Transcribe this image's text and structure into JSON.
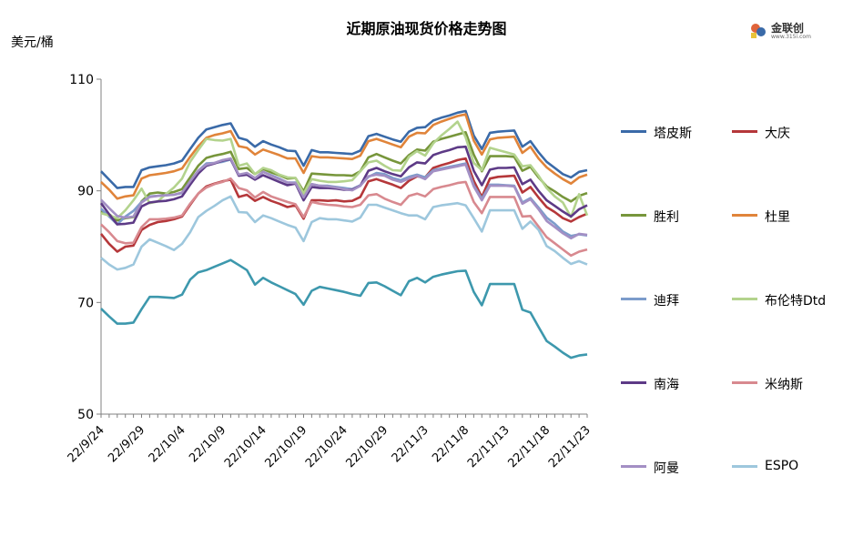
{
  "chart_data": {
    "type": "line",
    "title": "近期原油现货价格走势图",
    "ylabel": "美元/桶",
    "ylim": [
      50,
      110
    ],
    "yticks": [
      50,
      70,
      90,
      110
    ],
    "x": [
      "22/9/24",
      "22/9/25",
      "22/9/26",
      "22/9/27",
      "22/9/28",
      "22/9/29",
      "22/9/30",
      "22/10/1",
      "22/10/2",
      "22/10/3",
      "22/10/4",
      "22/10/5",
      "22/10/6",
      "22/10/7",
      "22/10/8",
      "22/10/9",
      "22/10/10",
      "22/10/11",
      "22/10/12",
      "22/10/13",
      "22/10/14",
      "22/10/15",
      "22/10/16",
      "22/10/17",
      "22/10/18",
      "22/10/19",
      "22/10/20",
      "22/10/21",
      "22/10/22",
      "22/10/23",
      "22/10/24",
      "22/10/25",
      "22/10/26",
      "22/10/27",
      "22/10/28",
      "22/10/29",
      "22/10/30",
      "22/10/31",
      "22/11/1",
      "22/11/2",
      "22/11/3",
      "22/11/4",
      "22/11/5",
      "22/11/6",
      "22/11/7",
      "22/11/8",
      "22/11/9",
      "22/11/10",
      "22/11/11",
      "22/11/12",
      "22/11/13",
      "22/11/14",
      "22/11/15",
      "22/11/16",
      "22/11/17",
      "22/11/18",
      "22/11/19",
      "22/11/20",
      "22/11/21",
      "22/11/22",
      "22/11/23"
    ],
    "x_tick_labels": [
      "22/9/24",
      "22/9/29",
      "22/10/4",
      "22/10/9",
      "22/10/14",
      "22/10/19",
      "22/10/24",
      "22/10/29",
      "22/11/3",
      "22/11/8",
      "22/11/13",
      "22/11/18",
      "22/11/23"
    ],
    "grid": false,
    "legend_position": "right",
    "series": [
      {
        "name": "塔皮斯",
        "color": "#3a6aa8",
        "values": [
          93.5,
          92,
          90.5,
          90.7,
          90.7,
          93.7,
          94.2,
          94.4,
          94.6,
          94.9,
          95.4,
          97.5,
          99.5,
          101,
          101.4,
          101.8,
          102.1,
          99.5,
          99.1,
          97.9,
          98.9,
          98.3,
          97.8,
          97.2,
          97.1,
          94.5,
          97.3,
          96.9,
          96.9,
          96.8,
          96.7,
          96.6,
          97.2,
          99.8,
          100.2,
          99.7,
          99.2,
          98.8,
          100.6,
          101.3,
          101.4,
          102.6,
          103.1,
          103.5,
          104,
          104.3,
          99.9,
          97.5,
          100.4,
          100.6,
          100.7,
          100.8,
          97.9,
          98.9,
          96.9,
          95.2,
          94.1,
          93,
          92.4,
          93.4,
          93.7
        ]
      },
      {
        "name": "大庆",
        "color": "#b5373a",
        "values": [
          82.3,
          80.5,
          79.1,
          80,
          80.2,
          83,
          83.9,
          84.4,
          84.6,
          84.9,
          85.4,
          87.5,
          89.5,
          90.8,
          91.3,
          91.7,
          92,
          88.9,
          89.3,
          88.2,
          88.9,
          88.2,
          87.7,
          87.1,
          87.4,
          85,
          88.3,
          88.3,
          88.2,
          88.3,
          88.1,
          88.2,
          88.9,
          91.7,
          92.1,
          91.6,
          91.1,
          90.5,
          91.8,
          92.6,
          92.4,
          94.1,
          94.6,
          95,
          95.5,
          95.8,
          91.8,
          88.9,
          92.2,
          92.5,
          92.6,
          92.7,
          89.7,
          90.7,
          88.8,
          87.1,
          86.2,
          85.1,
          84.5,
          85.3,
          85.9
        ]
      },
      {
        "name": "胜利",
        "color": "#77963b",
        "values": [
          86.3,
          85.8,
          84.7,
          85.1,
          85.3,
          88.1,
          89.5,
          89.7,
          89.5,
          89.8,
          90.3,
          92.4,
          94.5,
          95.9,
          96.3,
          96.6,
          97,
          93.9,
          94.1,
          93,
          93.9,
          93.3,
          92.8,
          92.2,
          92.3,
          89.9,
          93.1,
          93,
          92.9,
          92.8,
          92.8,
          92.7,
          93.5,
          96,
          96.6,
          96,
          95.4,
          94.9,
          96.4,
          97.4,
          97.2,
          98.8,
          99.3,
          99.7,
          100.1,
          100.5,
          96.5,
          93.5,
          96.2,
          96.2,
          96.2,
          96.1,
          93.6,
          94.3,
          92.4,
          90.8,
          89.9,
          88.9,
          88.1,
          89.1,
          89.6
        ]
      },
      {
        "name": "杜里",
        "color": "#e0843a",
        "values": [
          91.6,
          90.2,
          88.6,
          89,
          89.2,
          92.2,
          92.8,
          93,
          93.2,
          93.5,
          94,
          96.1,
          98,
          99.5,
          100,
          100.3,
          100.7,
          98,
          97.7,
          96.5,
          97.4,
          96.9,
          96.4,
          95.8,
          95.8,
          93.2,
          96.2,
          96,
          96,
          95.9,
          95.8,
          95.7,
          96.3,
          98.9,
          99.3,
          98.8,
          98.3,
          97.8,
          99.7,
          100.4,
          100.3,
          101.8,
          102.4,
          102.9,
          103.4,
          103.7,
          99,
          96.5,
          99.2,
          99.5,
          99.6,
          99.7,
          96.8,
          97.9,
          95.8,
          94.2,
          93.1,
          92.1,
          91.3,
          92.4,
          92.9
        ]
      },
      {
        "name": "迪拜",
        "color": "#7c9ccb",
        "values": [
          86.8,
          85.4,
          84,
          85.4,
          86.4,
          88,
          89,
          89.1,
          89.2,
          89.3,
          89.6,
          91.5,
          93.6,
          94.9,
          95,
          95.2,
          95.6,
          92.8,
          93,
          92.1,
          93.4,
          92.8,
          92.2,
          91.5,
          91.5,
          88.8,
          91.2,
          90.9,
          90.9,
          90.7,
          90.5,
          90.3,
          91,
          92.5,
          93.2,
          93,
          92.3,
          91.9,
          92.5,
          92.9,
          92.4,
          93.7,
          94,
          94.3,
          94.6,
          94.9,
          91,
          88.6,
          91.1,
          91.1,
          91,
          90.9,
          87.9,
          88.7,
          87,
          85.2,
          84.1,
          82.7,
          81.9,
          82.2,
          82
        ]
      },
      {
        "name": "布伦特Dtd",
        "color": "#b3d38d",
        "values": [
          86,
          85.6,
          85.1,
          86.5,
          88.3,
          90.4,
          87.8,
          88.1,
          89.4,
          90.6,
          92.2,
          95.2,
          97.3,
          99.3,
          99.1,
          99,
          99.3,
          94.5,
          94.9,
          93,
          94.1,
          93.7,
          92.9,
          92.4,
          92.3,
          89.5,
          92.1,
          91.8,
          91.6,
          91.6,
          91.7,
          91.9,
          93.5,
          95.1,
          95.4,
          94.5,
          93.7,
          93.6,
          96.1,
          97.1,
          96.3,
          98.5,
          99.9,
          101.1,
          102.4,
          99.6,
          95,
          93.7,
          97.7,
          97.3,
          96.9,
          96.5,
          94.4,
          94.6,
          92.7,
          90.5,
          89,
          87.9,
          85.3,
          89.4,
          85.6
        ]
      },
      {
        "name": "南海",
        "color": "#5d3a86",
        "values": [
          87.8,
          85.8,
          84,
          84.1,
          84.3,
          87.2,
          87.9,
          88.1,
          88.2,
          88.5,
          89,
          91.1,
          93.1,
          94.5,
          94.9,
          95.4,
          95.7,
          92.7,
          92.9,
          92,
          92.8,
          92.2,
          91.6,
          91,
          91.3,
          88.3,
          90.7,
          90.5,
          90.5,
          90.4,
          90.2,
          90.2,
          90.9,
          93.6,
          94.1,
          93.5,
          93,
          92.6,
          94.2,
          95.1,
          94.9,
          96.4,
          96.9,
          97.3,
          97.8,
          97.9,
          93.6,
          91,
          93.8,
          94.1,
          94.1,
          94.2,
          91.2,
          92,
          90,
          88.3,
          87.3,
          86.3,
          85.4,
          86.7,
          87.4
        ]
      },
      {
        "name": "米纳斯",
        "color": "#d8898f",
        "values": [
          84,
          82.6,
          81,
          80.6,
          80.7,
          83.5,
          84.9,
          84.9,
          85,
          85.2,
          85.6,
          87.7,
          89.5,
          90.6,
          91.2,
          91.6,
          92.2,
          90.5,
          90.1,
          88.8,
          89.8,
          89,
          88.5,
          88,
          87.6,
          85.3,
          88,
          87.7,
          87.5,
          87.4,
          87.2,
          87.1,
          87.5,
          89.2,
          89.4,
          88.6,
          88,
          87.5,
          89.1,
          89.5,
          89,
          90.3,
          90.7,
          91,
          91.4,
          91.6,
          88,
          86,
          88.9,
          88.9,
          88.9,
          88.9,
          85.4,
          85.5,
          83.6,
          81.7,
          80.6,
          79.5,
          78.4,
          79.1,
          79.5
        ]
      },
      {
        "name": "阿曼",
        "color": "#a38fc4",
        "values": [
          88.4,
          86.9,
          85.5,
          85.2,
          85.4,
          87.9,
          88.9,
          89.1,
          89.2,
          89.3,
          89.7,
          91.7,
          93.6,
          94.7,
          95,
          95.5,
          95.8,
          92.9,
          93.2,
          92.3,
          93.4,
          92.7,
          92.1,
          91.5,
          91.4,
          88.8,
          91.2,
          90.9,
          90.8,
          90.6,
          90.3,
          90.1,
          90.9,
          92.6,
          92.9,
          92.7,
          92,
          91.6,
          92.2,
          92.7,
          92.1,
          93.5,
          93.8,
          94.1,
          94.4,
          94.7,
          90.8,
          88.3,
          90.9,
          90.9,
          90.9,
          90.8,
          87.7,
          88.5,
          86.7,
          84.6,
          83.5,
          82.4,
          81.5,
          82.3,
          82.1
        ]
      },
      {
        "name": "ESPO",
        "color": "#9dc7dd",
        "values": [
          78,
          76.8,
          75.9,
          76.2,
          76.8,
          80,
          81.3,
          80.7,
          80.1,
          79.4,
          80.5,
          82.6,
          85.3,
          86.4,
          87.3,
          88.3,
          89,
          86.2,
          86.1,
          84.4,
          85.6,
          85.1,
          84.5,
          83.9,
          83.4,
          81,
          84.4,
          85.1,
          84.9,
          84.9,
          84.7,
          84.5,
          85.2,
          87.5,
          87.5,
          87,
          86.5,
          86,
          85.6,
          85.6,
          84.9,
          87.1,
          87.4,
          87.6,
          87.8,
          87.4,
          85.1,
          82.7,
          86.5,
          86.5,
          86.5,
          86.5,
          83.2,
          84.5,
          83,
          80.1,
          79.2,
          78,
          76.9,
          77.4,
          76.8
        ]
      },
      {
        "name": "",
        "color": "#3d98ad",
        "values": [
          68.9,
          67.5,
          66.2,
          66.2,
          66.4,
          68.8,
          71,
          71,
          70.9,
          70.8,
          71.4,
          74.1,
          75.4,
          75.8,
          76.4,
          77,
          77.6,
          76.7,
          75.8,
          73.2,
          74.4,
          73.6,
          72.9,
          72.2,
          71.5,
          69.6,
          72.1,
          72.8,
          72.5,
          72.2,
          71.9,
          71.5,
          71.2,
          73.5,
          73.6,
          72.9,
          72.1,
          71.3,
          73.8,
          74.4,
          73.6,
          74.6,
          75,
          75.3,
          75.6,
          75.7,
          71.9,
          69.5,
          73.3,
          73.3,
          73.3,
          73.3,
          68.7,
          68.2,
          65.6,
          63.1,
          62.1,
          61,
          60.1,
          60.5,
          60.7
        ]
      }
    ]
  },
  "logo": {
    "text": "金联创",
    "sub": "www.315i.com"
  }
}
